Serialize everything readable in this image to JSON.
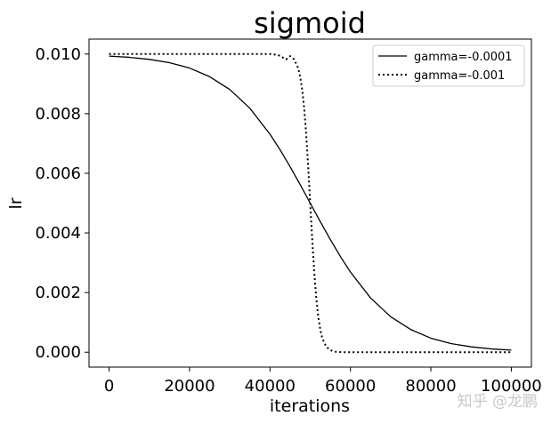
{
  "chart_data": {
    "type": "line",
    "title": "sigmoid",
    "xlabel": "iterations",
    "ylabel": "lr",
    "xlim": [
      -5000,
      105000
    ],
    "ylim": [
      -0.0005,
      0.0105
    ],
    "x_ticks": [
      0,
      20000,
      40000,
      60000,
      80000,
      100000
    ],
    "x_tick_labels": [
      "0",
      "20000",
      "40000",
      "60000",
      "80000",
      "100000"
    ],
    "y_ticks": [
      0.0,
      0.002,
      0.004,
      0.006,
      0.008,
      0.01
    ],
    "y_tick_labels": [
      "0.000",
      "0.002",
      "0.004",
      "0.006",
      "0.008",
      "0.010"
    ],
    "grid": false,
    "legend_position": "upper right",
    "series": [
      {
        "name": "gamma=-0.0001",
        "style": "solid",
        "color": "#000000",
        "x": [
          0,
          5000,
          10000,
          15000,
          20000,
          25000,
          30000,
          35000,
          40000,
          42500,
          45000,
          47500,
          50000,
          52500,
          55000,
          57500,
          60000,
          65000,
          70000,
          75000,
          80000,
          85000,
          90000,
          95000,
          100000
        ],
        "y": [
          0.00993,
          0.00989,
          0.00982,
          0.00971,
          0.00953,
          0.00924,
          0.00881,
          0.00818,
          0.00731,
          0.00679,
          0.00622,
          0.00562,
          0.005,
          0.00438,
          0.00378,
          0.00321,
          0.00269,
          0.00182,
          0.00119,
          0.00076,
          0.00047,
          0.00029,
          0.00018,
          0.00011,
          7e-05
        ]
      },
      {
        "name": "gamma=-0.001",
        "style": "dotted",
        "color": "#000000",
        "x": [
          0,
          10000,
          20000,
          30000,
          40000,
          42000,
          44000,
          45000,
          46000,
          47000,
          47500,
          48000,
          48500,
          49000,
          49500,
          50000,
          50500,
          51000,
          51500,
          52000,
          52500,
          53000,
          54000,
          55000,
          56000,
          58000,
          60000,
          70000,
          80000,
          90000,
          100000
        ],
        "y": [
          0.01,
          0.01,
          0.01,
          0.01,
          0.01,
          0.00997,
          0.00982,
          0.00993,
          0.00982,
          0.00953,
          0.00924,
          0.00881,
          0.00818,
          0.00731,
          0.00622,
          0.005,
          0.00378,
          0.00269,
          0.00182,
          0.00119,
          0.00076,
          0.00047,
          0.00018,
          7e-05,
          2e-05,
          0.0,
          0.0,
          0.0,
          0.0,
          0.0,
          0.0
        ]
      }
    ]
  },
  "watermark": "知乎 @龙鹏"
}
